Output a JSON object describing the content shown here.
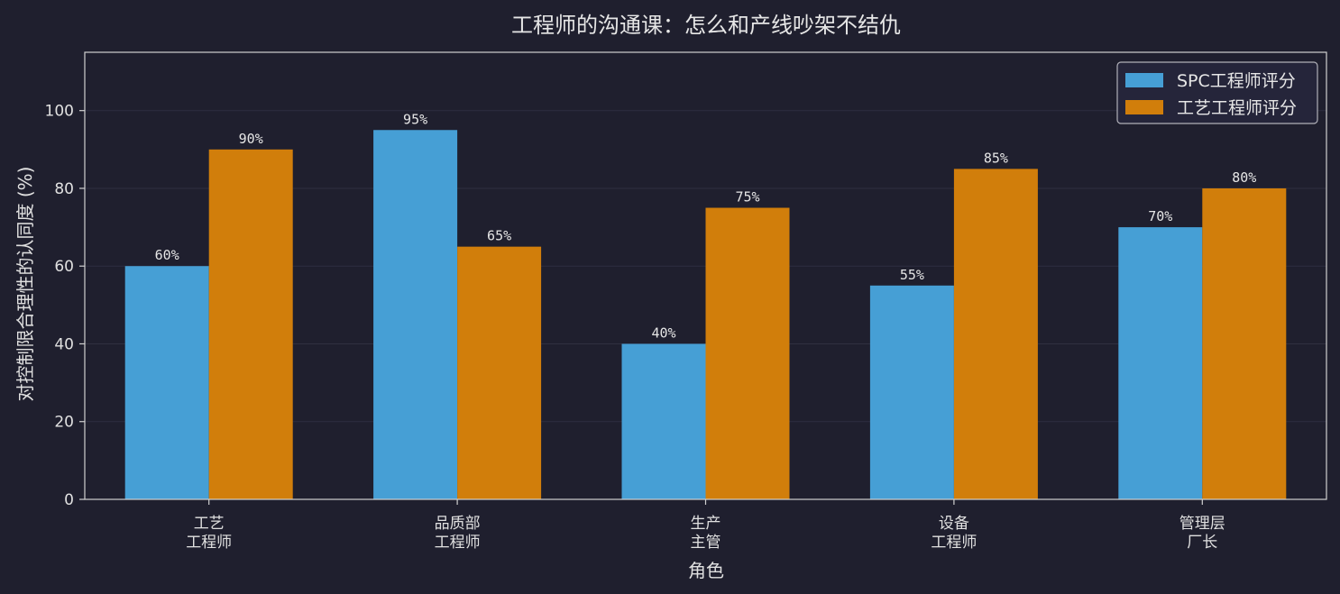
{
  "chart_data": {
    "type": "bar",
    "title": "工程师的沟通课：怎么和产线吵架不结仇",
    "xlabel": "角色",
    "ylabel": "对控制限合理性的认同度 (%)",
    "ylim": [
      0,
      115
    ],
    "yticks": [
      0,
      20,
      40,
      60,
      80,
      100
    ],
    "categories": [
      [
        "工艺",
        "工程师"
      ],
      [
        "品质部",
        "工程师"
      ],
      [
        "生产",
        "主管"
      ],
      [
        "设备",
        "工程师"
      ],
      [
        "管理层",
        "厂长"
      ]
    ],
    "series": [
      {
        "name": "SPC工程师评分",
        "color": "#469fd5",
        "values": [
          60,
          95,
          40,
          55,
          70
        ],
        "labels": [
          "60%",
          "95%",
          "40%",
          "55%",
          "70%"
        ]
      },
      {
        "name": "工艺工程师评分",
        "color": "#d17e0b",
        "values": [
          90,
          65,
          75,
          85,
          80
        ],
        "labels": [
          "90%",
          "65%",
          "75%",
          "85%",
          "80%"
        ]
      }
    ],
    "grid": true,
    "legend_position": "top-right",
    "colors": {
      "background": "#1f1f2e",
      "axis": "#d0d0d0",
      "grid": "#2f2f40",
      "text": "#e0e0e0"
    }
  }
}
